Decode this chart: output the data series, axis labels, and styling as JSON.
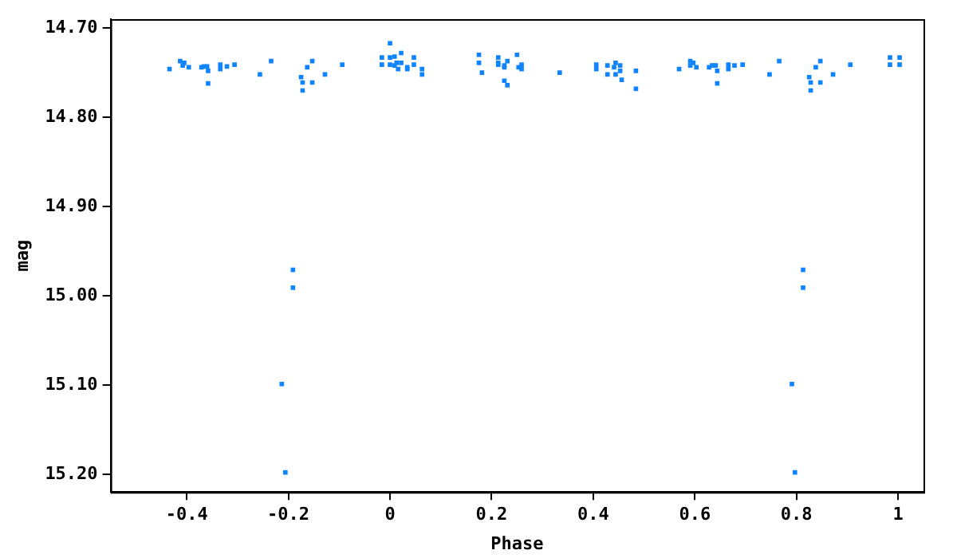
{
  "chart_data": {
    "type": "scatter",
    "xlabel": "Phase",
    "ylabel": "mag",
    "marker": "square",
    "grid": false,
    "legend": false,
    "xlim": [
      -0.55,
      1.05
    ],
    "xticks": [
      -0.4,
      -0.2,
      0,
      0.2,
      0.4,
      0.6,
      0.8,
      1
    ],
    "ylim": [
      15.22,
      14.69
    ],
    "yticks": [
      {
        "value": 14.7,
        "label": "14.70"
      },
      {
        "value": 14.8,
        "label": "14.80"
      },
      {
        "value": 14.9,
        "label": "14.90"
      },
      {
        "value": 15.0,
        "label": "15.00"
      },
      {
        "value": 15.1,
        "label": "15.10"
      },
      {
        "value": 15.2,
        "label": "15.20"
      }
    ],
    "series": [
      {
        "color": "#1084ff",
        "x": [
          -0.434,
          -0.413,
          -0.408,
          -0.405,
          -0.396,
          -0.371,
          -0.366,
          -0.36,
          -0.358,
          -0.358,
          -0.334,
          -0.334,
          -0.321,
          -0.306,
          -0.256,
          -0.234,
          -0.175,
          -0.172,
          -0.172,
          -0.163,
          -0.153,
          -0.153,
          -0.128,
          -0.094,
          -0.016,
          -0.016,
          0,
          0,
          0,
          0.009,
          0.009,
          0.013,
          0.016,
          0.022,
          0.022,
          0.034,
          0.034,
          0.047,
          0.047,
          0.063,
          0.063,
          0.175,
          0.175,
          0.181,
          0.213,
          0.213,
          0.213,
          0.225,
          0.225,
          0.225,
          0.231,
          0.231,
          0.25,
          0.253,
          0.259,
          0.259,
          0.334,
          0.406,
          0.406,
          0.428,
          0.428,
          0.441,
          0.444,
          0.444,
          0.453,
          0.453,
          0.456,
          0.484,
          0.484,
          0.569,
          0.591,
          0.591,
          0.597,
          0.603,
          0.628,
          0.634,
          0.641,
          0.644,
          0.644,
          0.666,
          0.666,
          0.678,
          0.694,
          0.747,
          0.766,
          0.825,
          0.828,
          0.828,
          0.838,
          0.847,
          0.847,
          0.872,
          0.906,
          0.984,
          0.984,
          1.003,
          1.003,
          -0.191,
          -0.191,
          -0.213,
          -0.206,
          0.813,
          0.813,
          0.791,
          0.797
        ],
        "values": [
          14.746,
          14.737,
          14.742,
          14.739,
          14.744,
          14.744,
          14.743,
          14.743,
          14.748,
          14.762,
          14.741,
          14.746,
          14.743,
          14.741,
          14.752,
          14.737,
          14.755,
          14.761,
          14.77,
          14.744,
          14.737,
          14.761,
          14.752,
          14.741,
          14.733,
          14.741,
          14.717,
          14.733,
          14.741,
          14.732,
          14.742,
          14.739,
          14.746,
          14.728,
          14.739,
          14.744,
          14.746,
          14.733,
          14.741,
          14.746,
          14.752,
          14.73,
          14.739,
          14.75,
          14.733,
          14.739,
          14.741,
          14.742,
          14.744,
          14.759,
          14.737,
          14.764,
          14.73,
          14.744,
          14.741,
          14.746,
          14.75,
          14.741,
          14.746,
          14.742,
          14.752,
          14.744,
          14.739,
          14.752,
          14.742,
          14.748,
          14.758,
          14.748,
          14.768,
          14.746,
          14.737,
          14.742,
          14.739,
          14.744,
          14.744,
          14.742,
          14.742,
          14.748,
          14.762,
          14.741,
          14.746,
          14.742,
          14.741,
          14.752,
          14.737,
          14.755,
          14.761,
          14.77,
          14.744,
          14.737,
          14.761,
          14.752,
          14.741,
          14.733,
          14.741,
          14.733,
          14.741,
          14.971,
          14.991,
          15.099,
          15.198,
          14.971,
          14.991,
          15.099,
          15.198
        ]
      }
    ]
  }
}
